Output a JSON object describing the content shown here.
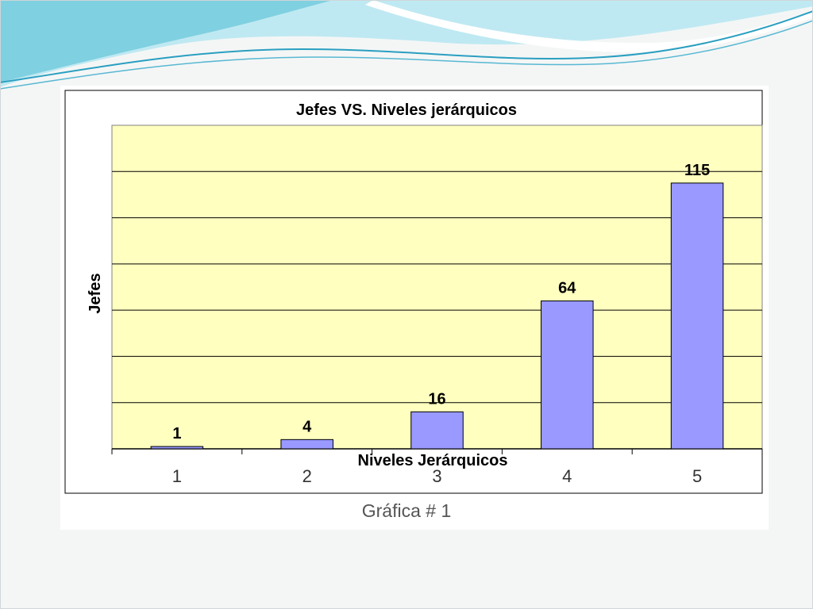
{
  "slide": {
    "caption": "Gráfica # 1",
    "colors": {
      "background": "#f4f6f6",
      "wave_light": "#a8e3ef",
      "wave_mid": "#5ec6da",
      "wave_line": "#2a9fc0"
    }
  },
  "chart_data": {
    "type": "bar",
    "title": "Jefes VS. Niveles jerárquicos",
    "xlabel": "Niveles Jerárquicos",
    "ylabel": "Jefes",
    "categories": [
      "1",
      "2",
      "3",
      "4",
      "5"
    ],
    "values": [
      1,
      4,
      16,
      64,
      115
    ],
    "data_labels": [
      "1",
      "4",
      "16",
      "64",
      "115"
    ],
    "ylim": [
      0,
      140
    ],
    "y_gridline_step": 20,
    "y_tick_labels_shown": false,
    "grid": true,
    "legend": "none",
    "colors": {
      "bar": "#9999ff",
      "plot_area": "#ffffc0",
      "frame": "#000000",
      "gridline": "#000000"
    }
  }
}
